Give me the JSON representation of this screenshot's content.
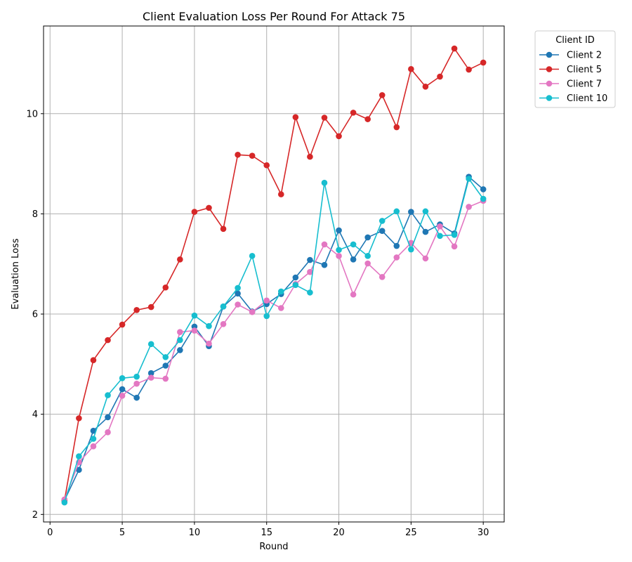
{
  "chart_data": {
    "type": "line",
    "title": "Client Evaluation Loss Per Round For Attack 75",
    "xlabel": "Round",
    "ylabel": "Evaluation Loss",
    "xlim": [
      -0.45,
      31.45
    ],
    "ylim": [
      1.85,
      11.75
    ],
    "xticks": [
      0,
      5,
      10,
      15,
      20,
      25,
      30
    ],
    "yticks": [
      2,
      4,
      6,
      8,
      10
    ],
    "grid": true,
    "legend_title": "Client ID",
    "legend_position": "outside-right-top",
    "x": [
      1,
      2,
      3,
      4,
      5,
      6,
      7,
      8,
      9,
      10,
      11,
      12,
      13,
      14,
      15,
      16,
      17,
      18,
      19,
      20,
      21,
      22,
      23,
      24,
      25,
      26,
      27,
      28,
      29,
      30
    ],
    "series": [
      {
        "name": "Client 2",
        "color": "#1f77b4",
        "values": [
          2.28,
          2.89,
          3.67,
          3.94,
          4.5,
          4.33,
          4.82,
          4.97,
          5.28,
          5.75,
          5.36,
          6.15,
          6.41,
          6.05,
          6.2,
          6.4,
          6.73,
          7.08,
          6.98,
          7.67,
          7.09,
          7.53,
          7.66,
          7.36,
          8.04,
          7.64,
          7.79,
          7.61,
          8.74,
          8.49
        ]
      },
      {
        "name": "Client 5",
        "color": "#d62728",
        "values": [
          2.28,
          3.92,
          5.08,
          5.48,
          5.79,
          6.08,
          6.14,
          6.53,
          7.09,
          8.04,
          8.12,
          7.7,
          9.18,
          9.16,
          8.97,
          8.39,
          9.93,
          9.14,
          9.92,
          9.55,
          10.02,
          9.89,
          10.37,
          9.73,
          10.89,
          10.54,
          10.74,
          11.3,
          10.88,
          11.02
        ]
      },
      {
        "name": "Client 7",
        "color": "#e377c2",
        "values": [
          2.3,
          3.04,
          3.36,
          3.64,
          4.37,
          4.61,
          4.73,
          4.71,
          5.64,
          5.67,
          5.41,
          5.8,
          6.19,
          6.04,
          6.27,
          6.12,
          6.6,
          6.84,
          7.39,
          7.16,
          6.39,
          7.01,
          6.74,
          7.13,
          7.42,
          7.11,
          7.75,
          7.35,
          8.14,
          8.26
        ]
      },
      {
        "name": "Client 10",
        "color": "#17becf",
        "values": [
          2.24,
          3.16,
          3.51,
          4.38,
          4.72,
          4.75,
          5.4,
          5.14,
          5.48,
          5.97,
          5.76,
          6.15,
          6.52,
          7.16,
          5.96,
          6.45,
          6.58,
          6.43,
          8.62,
          7.28,
          7.39,
          7.16,
          7.86,
          8.05,
          7.29,
          8.05,
          7.56,
          7.58,
          8.7,
          8.3
        ]
      }
    ]
  }
}
